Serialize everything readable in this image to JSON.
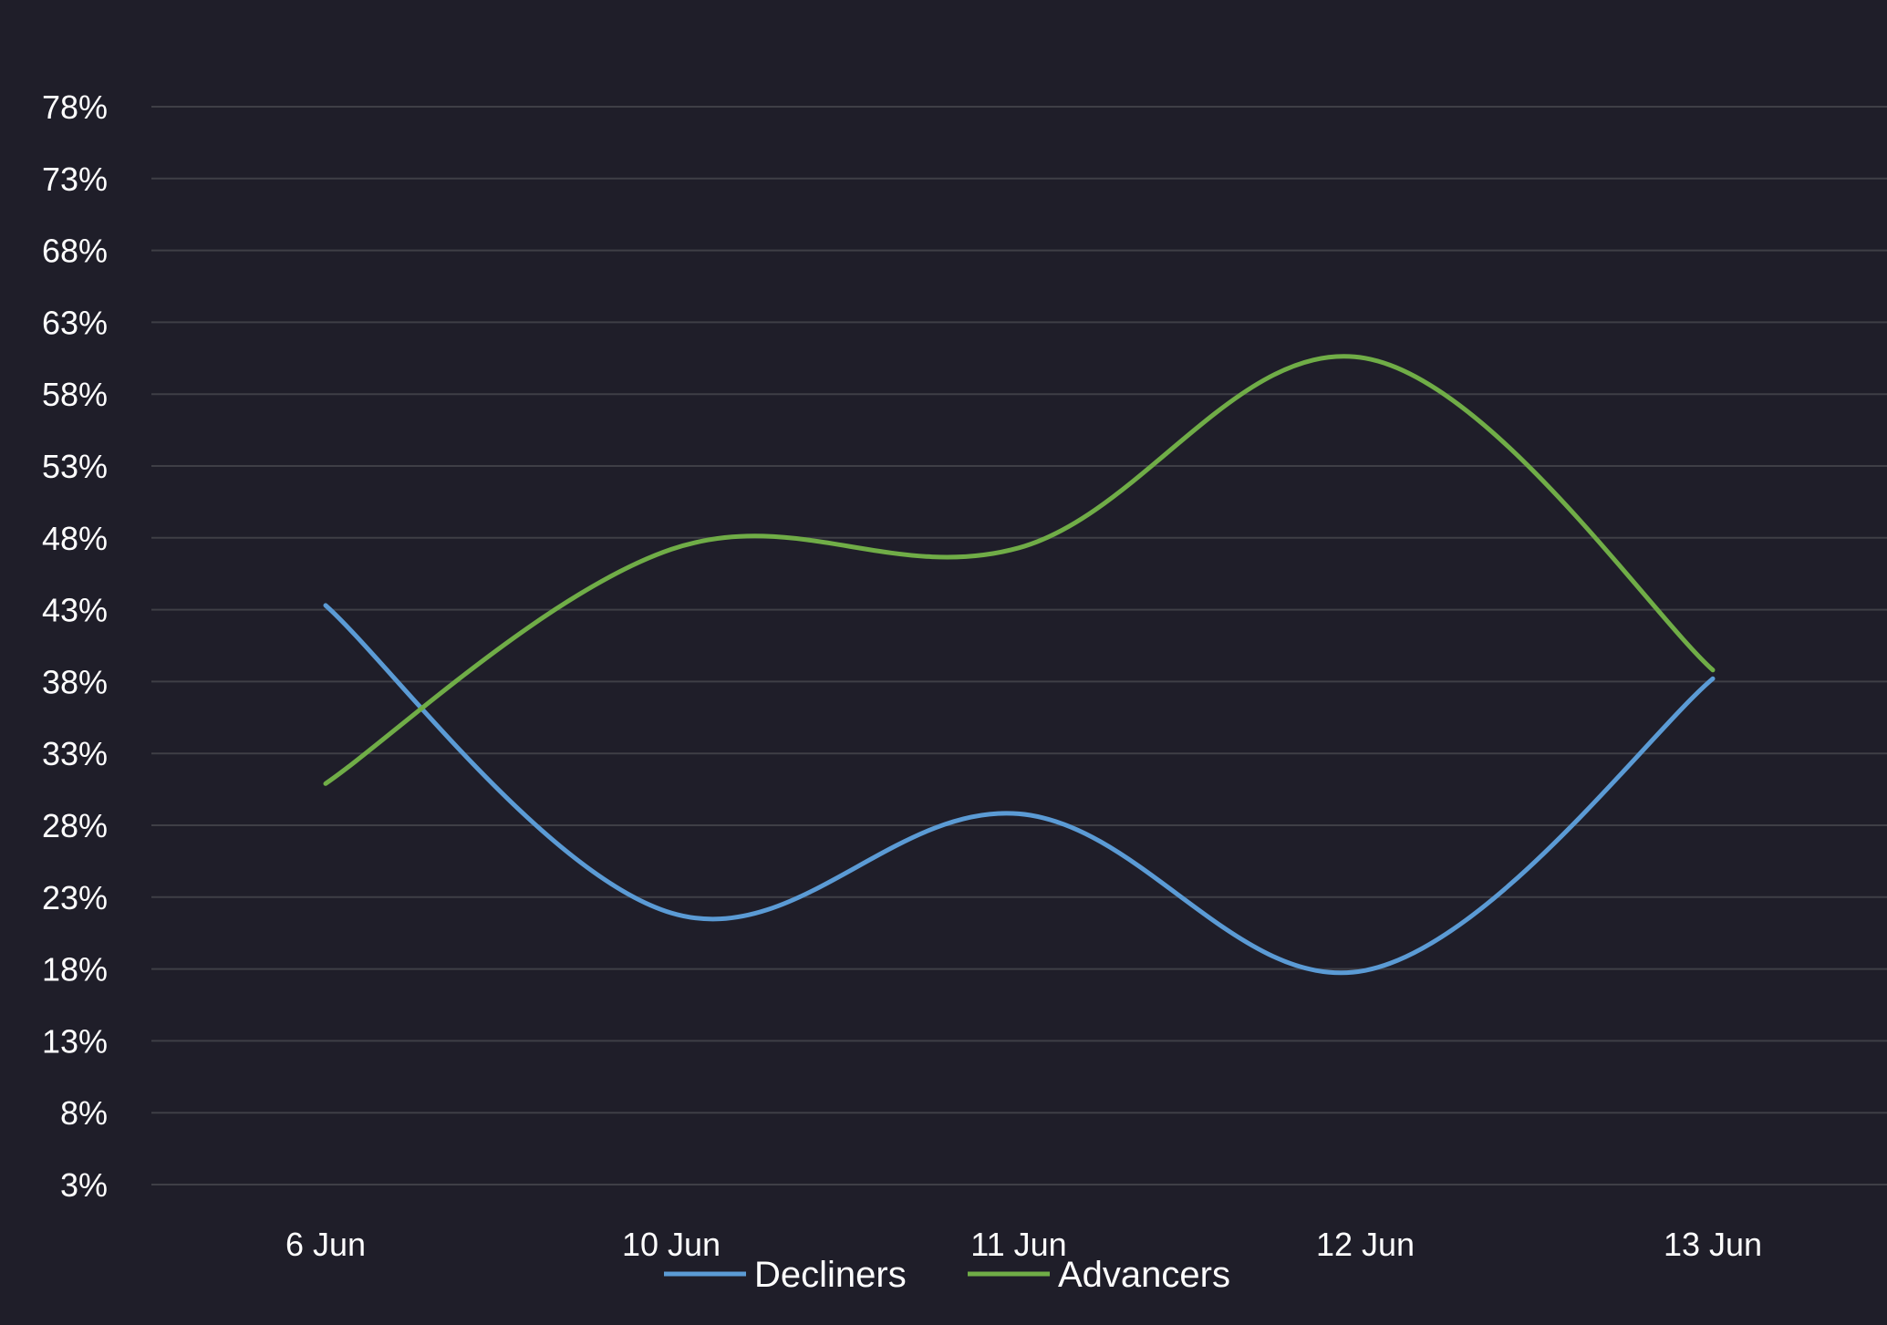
{
  "chart_data": {
    "type": "line",
    "title": "",
    "xlabel": "",
    "ylabel": "",
    "categories": [
      "6 Jun",
      "10 Jun",
      "11 Jun",
      "12 Jun",
      "13 Jun"
    ],
    "y_ticks": [
      "3%",
      "8%",
      "13%",
      "18%",
      "23%",
      "28%",
      "33%",
      "38%",
      "43%",
      "48%",
      "53%",
      "58%",
      "63%",
      "68%",
      "73%",
      "78%"
    ],
    "ylim": [
      3,
      78
    ],
    "grid": true,
    "legend_position": "bottom",
    "series": [
      {
        "name": "Decliners",
        "color": "#5b9bd5",
        "values": [
          43.3,
          21.9,
          28.8,
          17.9,
          38.2
        ]
      },
      {
        "name": "Advancers",
        "color": "#70ad47",
        "values": [
          30.9,
          47.2,
          47.3,
          60.5,
          38.8
        ]
      }
    ]
  },
  "colors": {
    "background": "#1f1e29",
    "grid": "#3f3f46",
    "text": "#ffffff"
  }
}
